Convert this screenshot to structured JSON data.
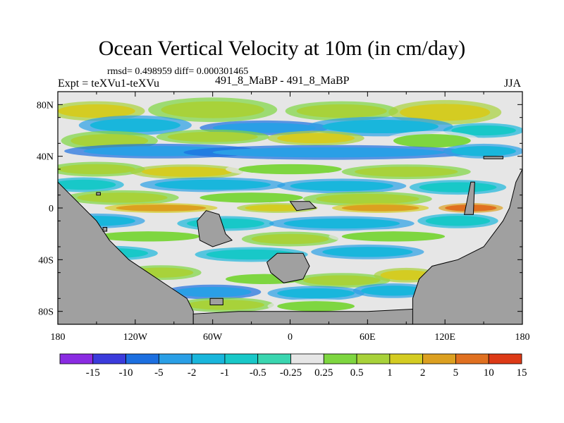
{
  "title": "Ocean Vertical Velocity at 10m (in cm/day)",
  "stats_line": "rmsd= 0.498959 diff= 0.000301465",
  "expt_line": "Expt = teXVu1-teXVu",
  "case_line": "491_8_MaBP - 491_8_MaBP",
  "season": "JJA",
  "y_axis": {
    "labels": [
      "80N",
      "40N",
      "0",
      "40S",
      "80S"
    ],
    "values": [
      80,
      40,
      0,
      -40,
      -80
    ],
    "range": [
      -90,
      90
    ]
  },
  "x_axis": {
    "labels": [
      "180",
      "120W",
      "60W",
      "0",
      "60E",
      "120E",
      "180"
    ],
    "values": [
      -180,
      -120,
      -60,
      0,
      60,
      120,
      180
    ],
    "range": [
      -180,
      180
    ]
  },
  "colorbar": {
    "labels": [
      "-15",
      "-10",
      "-5",
      "-2",
      "-1",
      "-0.5",
      "-0.25",
      "0.25",
      "0.5",
      "1",
      "2",
      "5",
      "10",
      "15"
    ],
    "colors": [
      "#8a2be2",
      "#3b3bdc",
      "#1c6fe0",
      "#2a9fe6",
      "#19b6dc",
      "#18c8c8",
      "#3ad6b0",
      "#e6e6e6",
      "#7ed640",
      "#a8d23a",
      "#d4cc22",
      "#dca020",
      "#e07020",
      "#dd3a16"
    ]
  },
  "land_color": "#a0a0a0"
}
